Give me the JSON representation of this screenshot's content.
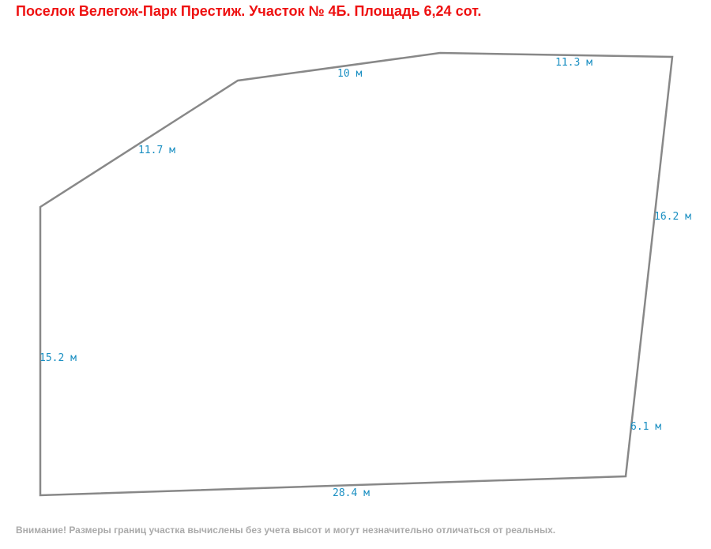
{
  "title": "Поселок Велегож-Парк Престиж. Участок № 4Б. Площадь 6,24 сот.",
  "edges": [
    "11.7 м",
    "10 м",
    "11.3 м",
    "16.2 м",
    "6.1 м",
    "28.4 м",
    "15.2 м"
  ],
  "note": "Внимание! Размеры границ участка вычислены без учета высот и могут незначительно отличаться от реальных."
}
